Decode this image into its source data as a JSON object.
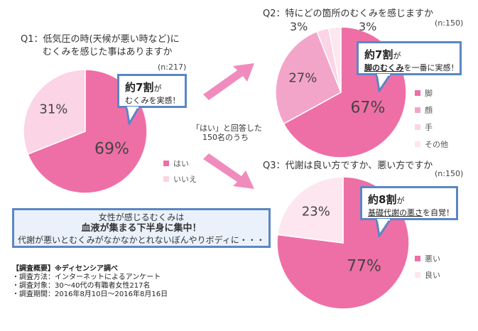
{
  "colors": {
    "pink_main": "#ee6fa6",
    "pink_light": "#fbd4e5",
    "pink_mid": "#f3a4c9",
    "pink_pale": "#fde6ef",
    "accent_blue": "#5b86c5",
    "arrow_pink": "#f08bbd"
  },
  "chart_data": [
    {
      "type": "pie",
      "title": "Q1：低気圧の時(天候が悪い時など)に",
      "subtitle": "むくみを感じた事はありますか",
      "n_label": "(n:217)",
      "slices": [
        {
          "label": "はい",
          "value": 69,
          "display": "69%"
        },
        {
          "label": "いいえ",
          "value": 31,
          "display": "31%"
        }
      ],
      "callout": {
        "big": "約7割",
        "suffix": "が",
        "line2": "むくみを実感！"
      }
    },
    {
      "type": "pie",
      "title": "Q2：特にどの箇所のむくみを感じますか",
      "n_label": "(n:150)",
      "slices": [
        {
          "label": "脚",
          "value": 67,
          "display": "67%"
        },
        {
          "label": "顔",
          "value": 27,
          "display": "27%"
        },
        {
          "label": "手",
          "value": 3,
          "display": "3%"
        },
        {
          "label": "その他",
          "value": 3,
          "display": "3%"
        }
      ],
      "callout": {
        "big": "約7割",
        "suffix": "が",
        "line2_u": "脚のむくみ",
        "line2_rest": "を一番に実感！"
      }
    },
    {
      "type": "pie",
      "title": "Q3：代謝は良い方ですか、悪い方ですか",
      "n_label": "(n:150)",
      "slices": [
        {
          "label": "悪い",
          "value": 77,
          "display": "77%"
        },
        {
          "label": "良い",
          "value": 23,
          "display": "23%"
        }
      ],
      "callout": {
        "big": "約8割",
        "suffix": "が",
        "line2_u": "基礎代謝の悪さ",
        "line2_rest": "を自覚！"
      }
    }
  ],
  "middle_note": {
    "line1": "「はい」と回答した",
    "line2": "150名のうち"
  },
  "summary": {
    "line1": "女性が感じるむくみは",
    "line2": "血液が集まる下半身に集中！",
    "line3": "代謝が悪いとむくみがなかなかとれないぼんやりボディに・・・"
  },
  "overview": {
    "line1": "【調査概要】※ディセンシア調べ",
    "line2": "・調査方法：インターネットによるアンケート",
    "line3": "・調査対象：30～40代の有職者女性217名",
    "line4": "・調査期間：2016年8月10日～2016年8月16日"
  }
}
